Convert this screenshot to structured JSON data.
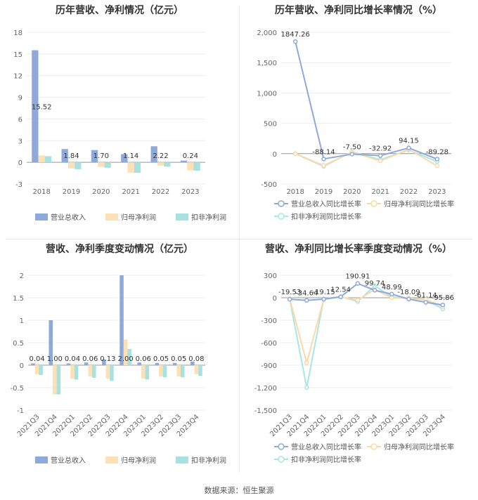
{
  "panels": {
    "p1": {
      "title": "历年营收、净利情况（亿元）"
    },
    "p2": {
      "title": "历年营收、净利同比增长率情况（%）"
    },
    "p3": {
      "title": "营收、净利季度变动情况（亿元）"
    },
    "p4": {
      "title": "营收、净利同比增长率季度变动情况（%）"
    }
  },
  "footer": {
    "source": "数据来源：恒生聚源"
  },
  "colors": {
    "revenue": "#8eaadb",
    "parent_profit": "#fde0b4",
    "deducted_profit": "#a9e0e0",
    "line_revenue": "#8eaadb",
    "line_parent": "#fdd9a8",
    "line_deducted": "#a9e6e6"
  },
  "chart_data": [
    {
      "type": "bar",
      "title": "历年营收、净利情况（亿元）",
      "categories": [
        "2018",
        "2019",
        "2020",
        "2021",
        "2022",
        "2023"
      ],
      "series": [
        {
          "name": "营业总收入",
          "values": [
            15.52,
            1.84,
            1.7,
            1.14,
            2.22,
            0.24
          ]
        },
        {
          "name": "归母净利润",
          "values": [
            0.95,
            -0.85,
            -0.65,
            -1.45,
            -0.45,
            -1.1
          ]
        },
        {
          "name": "扣非净利润",
          "values": [
            0.85,
            -0.95,
            -0.75,
            -1.45,
            -0.6,
            -1.15
          ]
        }
      ],
      "data_labels": [
        "15.52",
        "1.84",
        "1.70",
        "1.14",
        "2.22",
        "0.24"
      ],
      "yticks": [
        "18",
        "15",
        "12",
        "9",
        "6",
        "3",
        "0",
        "-3"
      ],
      "ylim": [
        -3,
        18
      ],
      "legend": "bottom"
    },
    {
      "type": "line",
      "title": "历年营收、净利同比增长率情况（%）",
      "categories": [
        "2018",
        "2019",
        "2020",
        "2021",
        "2022",
        "2023"
      ],
      "series": [
        {
          "name": "营业总收入同比增长率",
          "values": [
            1847.26,
            -88.14,
            -7.5,
            -32.92,
            94.15,
            -89.28
          ]
        },
        {
          "name": "归母净利润同比增长率",
          "values": [
            0,
            -195,
            25,
            -120,
            70,
            -200
          ]
        },
        {
          "name": "扣非净利润同比增长率",
          "values": [
            0,
            -210,
            30,
            -100,
            60,
            -130
          ]
        }
      ],
      "data_labels": [
        "1847.26",
        "-88.14",
        "-7.50",
        "-32.92",
        "94.15",
        "-89.28"
      ],
      "yticks": [
        "2,000",
        "1,500",
        "1,000",
        "500",
        "0",
        "-500"
      ],
      "ylim": [
        -500,
        2000
      ],
      "legend": "bottom"
    },
    {
      "type": "bar",
      "title": "营收、净利季度变动情况（亿元）",
      "categories": [
        "2021Q3",
        "2021Q4",
        "2022Q1",
        "2022Q2",
        "2022Q3",
        "2022Q4",
        "2023Q1",
        "2023Q2",
        "2023Q3",
        "2023Q4"
      ],
      "series": [
        {
          "name": "营业总收入",
          "values": [
            0.04,
            1.0,
            0.04,
            0.06,
            0.13,
            2.0,
            0.06,
            0.05,
            0.05,
            0.08
          ]
        },
        {
          "name": "归母净利润",
          "values": [
            -0.2,
            -0.65,
            -0.3,
            -0.25,
            -0.3,
            0.57,
            -0.3,
            -0.25,
            -0.25,
            -0.2
          ]
        },
        {
          "name": "扣非净利润",
          "values": [
            -0.22,
            -0.65,
            -0.32,
            -0.28,
            -0.35,
            0.36,
            -0.32,
            -0.27,
            -0.27,
            -0.24
          ]
        }
      ],
      "data_labels": [
        "0.04",
        "1.00",
        "0.04",
        "0.06",
        "0.13",
        "2.00",
        "0.06",
        "0.05",
        "0.05",
        "0.08"
      ],
      "yticks": [
        "2",
        "1.5",
        "1",
        "0.5",
        "0",
        "-0.5",
        "-1"
      ],
      "ylim": [
        -1,
        2
      ],
      "legend": "bottom"
    },
    {
      "type": "line",
      "title": "营收、净利同比增长率季度变动情况（%）",
      "categories": [
        "2021Q3",
        "2021Q4",
        "2022Q1",
        "2022Q2",
        "2022Q3",
        "2022Q4",
        "2023Q1",
        "2023Q2",
        "2023Q3",
        "2023Q4"
      ],
      "series": [
        {
          "name": "营业总收入同比增长率",
          "values": [
            -19.53,
            -34.64,
            -19.15,
            12.54,
            190.91,
            99.74,
            48.99,
            -18.09,
            -61.14,
            -95.86
          ]
        },
        {
          "name": "归母净利润同比增长率",
          "values": [
            -10,
            -870,
            -20,
            10,
            -30,
            110,
            0,
            -10,
            -20,
            -120
          ]
        },
        {
          "name": "扣非净利润同比增长率",
          "values": [
            -15,
            -1200,
            -15,
            15,
            -50,
            160,
            10,
            -5,
            -30,
            -150
          ]
        }
      ],
      "data_labels": [
        "-19.53",
        "-34.64",
        "-19.15",
        "12.54",
        "190.91",
        "99.74",
        "48.99",
        "-18.09",
        "-61.14",
        "-95.86"
      ],
      "yticks": [
        "300",
        "0",
        "-300",
        "-600",
        "-900",
        "-1,200",
        "-1,500"
      ],
      "ylim": [
        -1500,
        300
      ],
      "legend": "bottom"
    }
  ]
}
